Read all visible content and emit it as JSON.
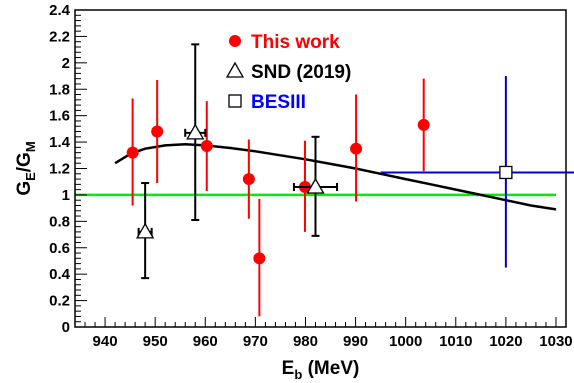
{
  "chart_data": {
    "type": "scatter",
    "title": "",
    "xlabel": "E",
    "xlabel_sub": "b",
    "xlabel_unit": " (MeV)",
    "ylabel_parts": [
      {
        "t": "G",
        "sub": false
      },
      {
        "t": "E",
        "sub": true
      },
      {
        "t": "/G",
        "sub": false
      },
      {
        "t": "M",
        "sub": true
      }
    ],
    "xlim": [
      934,
      1032
    ],
    "ylim": [
      0,
      2.4
    ],
    "xticks": [
      940,
      950,
      960,
      970,
      980,
      990,
      1000,
      1010,
      1020,
      1030
    ],
    "yticks": [
      0,
      0.2,
      0.4,
      0.6,
      0.8,
      1,
      1.2,
      1.4,
      1.6,
      1.8,
      2,
      2.2,
      2.4
    ],
    "legend_position": "top-center",
    "series": [
      {
        "name": "This work",
        "marker": "filled-circle",
        "color": "#ff0000",
        "label_color": "#ff0000",
        "points": [
          {
            "x": 945.5,
            "y": 1.32,
            "yerr_lo": 0.4,
            "yerr_hi": 0.41
          },
          {
            "x": 950.4,
            "y": 1.48,
            "yerr_lo": 0.39,
            "yerr_hi": 0.39
          },
          {
            "x": 960.3,
            "y": 1.37,
            "yerr_lo": 0.34,
            "yerr_hi": 0.34
          },
          {
            "x": 968.7,
            "y": 1.12,
            "yerr_lo": 0.3,
            "yerr_hi": 0.3
          },
          {
            "x": 970.8,
            "y": 0.52,
            "yerr_lo": 0.44,
            "yerr_hi": 0.45
          },
          {
            "x": 979.9,
            "y": 1.06,
            "yerr_lo": 0.34,
            "yerr_hi": 0.35
          },
          {
            "x": 990.1,
            "y": 1.35,
            "yerr_lo": 0.4,
            "yerr_hi": 0.41
          },
          {
            "x": 1003.6,
            "y": 1.53,
            "yerr_lo": 0.35,
            "yerr_hi": 0.35
          }
        ]
      },
      {
        "name": "SND (2019)",
        "marker": "open-triangle",
        "color": "#000000",
        "label_color": "#000000",
        "points": [
          {
            "x": 948.0,
            "y": 0.72,
            "xerr": 1.3,
            "yerr_lo": 0.35,
            "yerr_hi": 0.37
          },
          {
            "x": 958.0,
            "y": 1.47,
            "xerr": 2.0,
            "yerr_lo": 0.66,
            "yerr_hi": 0.67
          },
          {
            "x": 982.0,
            "y": 1.06,
            "xerr": 4.3,
            "yerr_lo": 0.37,
            "yerr_hi": 0.38
          }
        ]
      },
      {
        "name": "BESIII",
        "marker": "open-square",
        "color": "#0000cc",
        "label_color": "#0000ff",
        "points": [
          {
            "x": 1020.0,
            "y": 1.17,
            "xerr": 25.0,
            "yerr_lo": 0.72,
            "yerr_hi": 0.73
          }
        ]
      }
    ],
    "fit_curve": {
      "color": "#000000",
      "points": [
        [
          942,
          1.24
        ],
        [
          945,
          1.31
        ],
        [
          948,
          1.35
        ],
        [
          952,
          1.375
        ],
        [
          956,
          1.383
        ],
        [
          960,
          1.375
        ],
        [
          965,
          1.355
        ],
        [
          970,
          1.33
        ],
        [
          975,
          1.3
        ],
        [
          980,
          1.27
        ],
        [
          985,
          1.235
        ],
        [
          990,
          1.2
        ],
        [
          995,
          1.16
        ],
        [
          1000,
          1.12
        ],
        [
          1005,
          1.08
        ],
        [
          1010,
          1.04
        ],
        [
          1015,
          1.0
        ],
        [
          1020,
          0.96
        ],
        [
          1025,
          0.92
        ],
        [
          1030,
          0.89
        ]
      ]
    },
    "reference_line": {
      "y": 1.0,
      "x_from": 934,
      "x_to": 1030,
      "color": "#00ee00"
    }
  }
}
